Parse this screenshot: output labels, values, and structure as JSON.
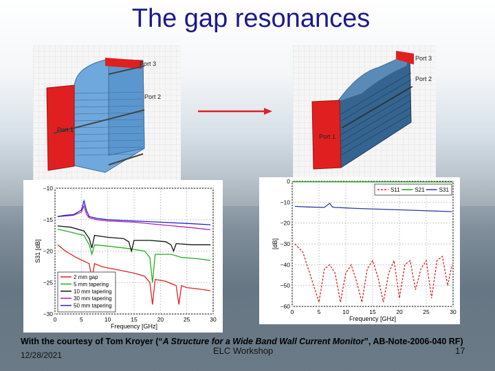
{
  "slide": {
    "title": "The gap resonances",
    "courtesy_prefix": "With the courtesy of Tom Kroyer (“",
    "courtesy_title": "A Structure for a Wide Band Wall Current Monitor",
    "courtesy_suffix": "”, AB-Note-2006-040 RF)",
    "footer_center": "ELC Workshop",
    "date": "12/28/2021",
    "page_number": "17"
  },
  "models": {
    "left_ports": [
      "Port 3",
      "Port 2",
      "Port 1"
    ],
    "right_ports": [
      "Port 3",
      "Port 2",
      "Port 1"
    ]
  },
  "chart_data": [
    {
      "type": "line",
      "xlabel": "Frequency [GHz]",
      "ylabel": "S31 [dB]",
      "xlim": [
        0,
        30
      ],
      "ylim": [
        -30,
        -10
      ],
      "x_ticks": [
        "0",
        "5",
        "10",
        "15",
        "20",
        "25",
        "30"
      ],
      "y_ticks": [
        "−10",
        "−15",
        "−20",
        "−25",
        "−30"
      ],
      "grid": true,
      "legend_position": "bottom-left",
      "series": [
        {
          "name": "2 mm gap",
          "color": "#e02020",
          "x": [
            0.5,
            2,
            4,
            5.5,
            6.5,
            7,
            7.5,
            9,
            12,
            15,
            17,
            18,
            18.5,
            19,
            21,
            23,
            23.5,
            24,
            25,
            27,
            29.5
          ],
          "y": [
            -19,
            -20,
            -21,
            -21.6,
            -22,
            -24.5,
            -22,
            -22.5,
            -23,
            -23.5,
            -24,
            -25,
            -28.5,
            -24.5,
            -24.8,
            -25.5,
            -28.5,
            -25.5,
            -25.8,
            -26,
            -26.3
          ]
        },
        {
          "name": "5 mm tapering",
          "color": "#20b020",
          "x": [
            0.5,
            3,
            5.5,
            6.5,
            7,
            7.5,
            10,
            14,
            17,
            18,
            18.5,
            19,
            22,
            24,
            27,
            29.5
          ],
          "y": [
            -16.5,
            -17,
            -17.5,
            -19,
            -20.5,
            -19,
            -19.2,
            -19.6,
            -20,
            -21,
            -25,
            -20.5,
            -20.5,
            -21,
            -21.2,
            -21.5
          ]
        },
        {
          "name": "10 mm tapering",
          "color": "#101010",
          "x": [
            0.5,
            3,
            5.5,
            6.5,
            7,
            7.5,
            10,
            13,
            14,
            14.5,
            15,
            18,
            21,
            22,
            22.5,
            23,
            26,
            29.5
          ],
          "y": [
            -16,
            -16.2,
            -16.8,
            -18,
            -19.5,
            -17.5,
            -17.8,
            -18,
            -18.5,
            -20,
            -18.3,
            -18.3,
            -18.5,
            -19,
            -20,
            -18.8,
            -19,
            -19
          ]
        },
        {
          "name": "30 mm tapering",
          "color": "#b020b0",
          "x": [
            0.5,
            2,
            3.5,
            5,
            5.5,
            6,
            6.5,
            8,
            10,
            15,
            20,
            25,
            29.5
          ],
          "y": [
            -14.5,
            -14.4,
            -14.3,
            -13.8,
            -12.8,
            -14.2,
            -14.7,
            -15,
            -15.2,
            -15.4,
            -15.8,
            -16.2,
            -16.6
          ]
        },
        {
          "name": "50 mm tapering",
          "color": "#2020d0",
          "x": [
            0.5,
            2,
            3.5,
            5,
            5.5,
            6,
            6.5,
            8,
            10,
            15,
            20,
            25,
            29.5
          ],
          "y": [
            -14.5,
            -14.3,
            -14.2,
            -13.5,
            -12,
            -13.6,
            -14.5,
            -14.8,
            -15,
            -15.2,
            -15.4,
            -15.6,
            -15.8
          ]
        }
      ]
    },
    {
      "type": "line",
      "xlabel": "Frequency [GHz]",
      "ylabel": "[dB]",
      "xlim": [
        0,
        30
      ],
      "ylim": [
        -60,
        0
      ],
      "x_ticks": [
        "0",
        "5",
        "10",
        "15",
        "20",
        "25",
        "30"
      ],
      "y_ticks": [
        "0",
        "−10",
        "−20",
        "−30",
        "−40",
        "−50",
        "−60"
      ],
      "grid": true,
      "legend_position": "top-right",
      "series": [
        {
          "name": "S11",
          "color": "#e02020",
          "dashed": true,
          "x": [
            0.5,
            2,
            3.5,
            5,
            6,
            7,
            8,
            9,
            10,
            11,
            12,
            13,
            14,
            15,
            16,
            17,
            18,
            19,
            20,
            21,
            22,
            23,
            24,
            25,
            26,
            27,
            28,
            29,
            29.8
          ],
          "y": [
            -30,
            -34,
            -46,
            -58,
            -42,
            -40,
            -44,
            -58,
            -44,
            -40,
            -48,
            -58,
            -42,
            -38,
            -46,
            -58,
            -44,
            -38,
            -56,
            -40,
            -38,
            -52,
            -42,
            -38,
            -56,
            -38,
            -36,
            -50,
            -40
          ]
        },
        {
          "name": "S21",
          "color": "#20a020",
          "x": [
            0,
            30
          ],
          "y": [
            -0.2,
            -0.3
          ]
        },
        {
          "name": "S31",
          "color": "#2a3aa0",
          "x": [
            0.5,
            3,
            6,
            7,
            7.5,
            8,
            12,
            18,
            24,
            29.8
          ],
          "y": [
            -12,
            -12.3,
            -12.5,
            -10.5,
            -12.3,
            -12.5,
            -13,
            -13.5,
            -14,
            -14.5
          ]
        }
      ]
    }
  ]
}
